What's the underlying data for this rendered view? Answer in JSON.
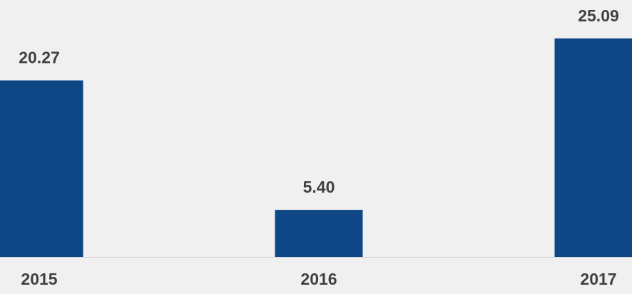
{
  "chart_data": {
    "type": "bar",
    "categories": [
      "2015",
      "2016",
      "2017"
    ],
    "values": [
      20.27,
      5.4,
      25.09
    ],
    "value_labels": [
      "20.27",
      "5.40",
      "25.09"
    ],
    "color": "#0e4686",
    "ylim": [
      0,
      29.5
    ]
  }
}
